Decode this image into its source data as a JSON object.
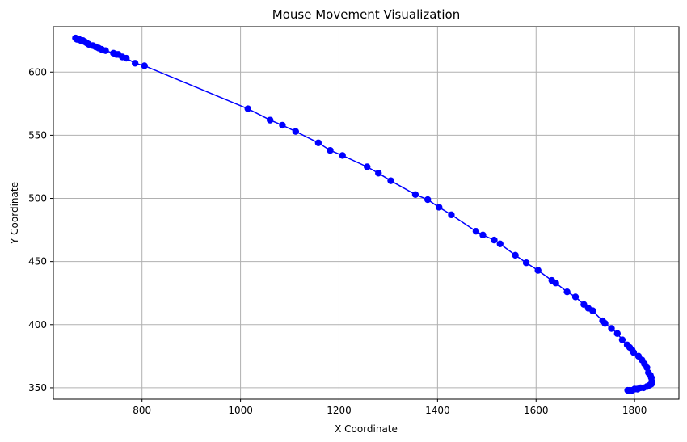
{
  "chart_data": {
    "type": "line",
    "title": "Mouse Movement Visualization",
    "xlabel": "X Coordinate",
    "ylabel": "Y Coordinate",
    "xlim": [
      620,
      1890
    ],
    "ylim": [
      341,
      636
    ],
    "xticks": [
      800,
      1000,
      1200,
      1400,
      1600,
      1800
    ],
    "yticks": [
      350,
      400,
      450,
      500,
      550,
      600
    ],
    "grid": true,
    "colors": {
      "series": "#0000ff"
    },
    "marker": "circle",
    "series": [
      {
        "x": [
          665,
          668,
          672,
          676,
          680,
          684,
          688,
          692,
          700,
          706,
          712,
          718,
          726,
          742,
          748,
          752,
          760,
          768,
          786,
          805,
          1015,
          1060,
          1085,
          1112,
          1158,
          1182,
          1207,
          1257,
          1280,
          1305,
          1355,
          1380,
          1403,
          1428,
          1478,
          1492,
          1515,
          1527,
          1558,
          1580,
          1604,
          1632,
          1640,
          1663,
          1680,
          1697,
          1706,
          1715,
          1735,
          1740,
          1753,
          1765,
          1775,
          1785,
          1790,
          1795,
          1798,
          1808,
          1815,
          1820,
          1825,
          1828,
          1832,
          1834,
          1835,
          1834,
          1830,
          1825,
          1818,
          1812,
          1806,
          1800,
          1795,
          1790,
          1786
        ],
        "y": [
          627,
          626,
          626,
          625,
          625,
          624,
          623,
          622,
          621,
          620,
          619,
          618,
          617,
          615,
          614,
          614,
          612,
          611,
          607,
          605,
          571,
          562,
          558,
          553,
          544,
          538,
          534,
          525,
          520,
          514,
          503,
          499,
          493,
          487,
          474,
          471,
          467,
          464,
          455,
          449,
          443,
          435,
          433,
          426,
          422,
          416,
          413,
          411,
          403,
          401,
          397,
          393,
          388,
          384,
          382,
          380,
          378,
          375,
          372,
          369,
          366,
          362,
          360,
          358,
          355,
          353,
          352,
          351,
          350,
          350,
          349,
          349,
          348,
          348,
          348
        ]
      }
    ]
  }
}
